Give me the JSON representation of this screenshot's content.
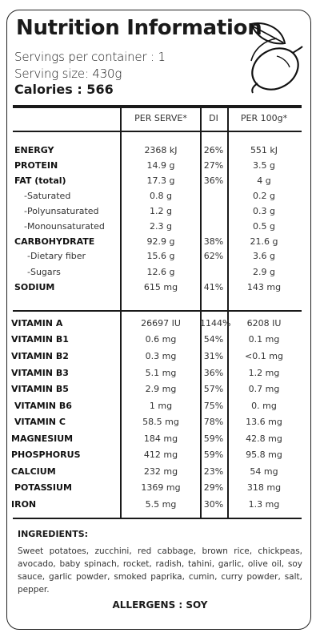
{
  "title": "Nutrition Information",
  "servings_per_container": "Servings per container : 1",
  "serving_size": "Serving size: 430g",
  "calories": "Calories : 566",
  "logo_icon": "lemon-leaf-icon",
  "headers": {
    "per_serve": "PER SERVE*",
    "di": "DI",
    "per_100g": "PER  100g*"
  },
  "nutrients": [
    {
      "label": "ENERGY",
      "per_serve": "2368 kJ",
      "di": "26%",
      "per_100g": "551 kJ"
    },
    {
      "label": "PROTEIN",
      "per_serve": "14.9 g",
      "di": "27%",
      "per_100g": "3.5 g"
    },
    {
      "label": "FAT (total)",
      "per_serve": "17.3 g",
      "di": "36%",
      "per_100g": "4 g"
    },
    {
      "label": "-Saturated",
      "per_serve": "0.8 g",
      "di": "",
      "per_100g": "0.2 g"
    },
    {
      "label": "-Polyunsaturated",
      "per_serve": "1.2 g",
      "di": "",
      "per_100g": "0.3 g"
    },
    {
      "label": "-Monounsaturated",
      "per_serve": "2.3 g",
      "di": "",
      "per_100g": "0.5 g"
    },
    {
      "label": "CARBOHYDRATE",
      "per_serve": "92.9 g",
      "di": "38%",
      "per_100g": "21.6 g"
    },
    {
      "label": "-Dietary fiber",
      "per_serve": "15.6 g",
      "di": "62%",
      "per_100g": "3.6 g"
    },
    {
      "label": "-Sugars",
      "per_serve": "12.6 g",
      "di": "",
      "per_100g": "2.9 g"
    },
    {
      "label": "SODIUM",
      "per_serve": "615 mg",
      "di": "41%",
      "per_100g": "143 mg"
    }
  ],
  "vitamins": [
    {
      "label": "VITAMIN A",
      "per_serve": "26697 IU",
      "di": "1144%",
      "per_100g": "6208 IU"
    },
    {
      "label": "VITAMIN B1",
      "per_serve": "0.6 mg",
      "di": "54%",
      "per_100g": "0.1 mg"
    },
    {
      "label": "VITAMIN B2",
      "per_serve": "0.3 mg",
      "di": "31%",
      "per_100g": "<0.1 mg"
    },
    {
      "label": "VITAMIN B3",
      "per_serve": "5.1 mg",
      "di": "36%",
      "per_100g": "1.2 mg"
    },
    {
      "label": "VITAMIN B5",
      "per_serve": "2.9 mg",
      "di": "57%",
      "per_100g": "0.7 mg"
    },
    {
      "label": "VITAMIN B6",
      "per_serve": "1 mg",
      "di": "75%",
      "per_100g": "0. mg"
    },
    {
      "label": "VITAMIN C",
      "per_serve": "58.5 mg",
      "di": "78%",
      "per_100g": "13.6 mg"
    },
    {
      "label": "MAGNESIUM",
      "per_serve": "184 mg",
      "di": "59%",
      "per_100g": "42.8 mg"
    },
    {
      "label": "PHOSPHORUS",
      "per_serve": "412 mg",
      "di": "59%",
      "per_100g": "95.8 mg"
    },
    {
      "label": "CALCIUM",
      "per_serve": "232 mg",
      "di": "23%",
      "per_100g": "54 mg"
    },
    {
      "label": "POTASSIUM",
      "per_serve": "1369 mg",
      "di": "29%",
      "per_100g": "318 mg"
    },
    {
      "label": "IRON",
      "per_serve": "5.5 mg",
      "di": "30%",
      "per_100g": "1.3 mg"
    }
  ],
  "ingredients_title": "INGREDIENTS:",
  "ingredients": "Sweet potatoes, zucchini, red cabbage, brown rice, chickpeas, avocado, baby spinach, rocket, radish, tahini, garlic, olive oil, soy sauce, garlic powder, smoked paprika, cumin, curry powder, salt, pepper.",
  "allergens": "ALLERGENS : SOY"
}
